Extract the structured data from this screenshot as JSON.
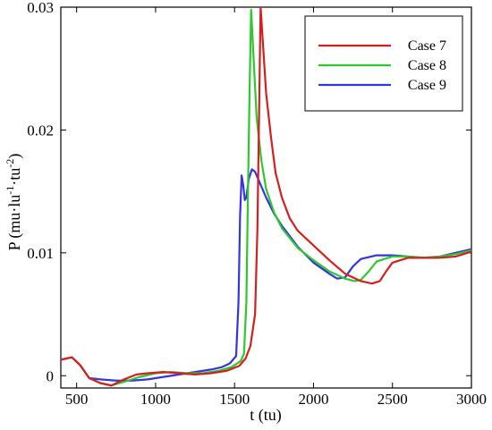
{
  "chart_data": {
    "type": "line",
    "xlabel": "t (tu)",
    "ylabel_parts": {
      "base": "P (mu·lu",
      "exp1": "-1",
      "mid": "·tu",
      "exp2": "-2",
      "close": ")"
    },
    "xlim": [
      400,
      3000
    ],
    "ylim": [
      -0.001,
      0.03
    ],
    "x_ticks": [
      {
        "value": 500,
        "label": "500"
      },
      {
        "value": 1000,
        "label": "1000"
      },
      {
        "value": 1500,
        "label": "1500"
      },
      {
        "value": 2000,
        "label": "2000"
      },
      {
        "value": 2500,
        "label": "2500"
      },
      {
        "value": 3000,
        "label": "3000"
      }
    ],
    "y_ticks": [
      {
        "value": 0,
        "label": "0"
      },
      {
        "value": 0.01,
        "label": "0.01"
      },
      {
        "value": 0.02,
        "label": "0.02"
      },
      {
        "value": 0.03,
        "label": "0.03"
      }
    ],
    "legend_position": "top-right",
    "grid": false,
    "series": [
      {
        "name": "Case 7",
        "color": "#d41f1f",
        "points": [
          [
            400,
            0.0013
          ],
          [
            470,
            0.0015
          ],
          [
            520,
            0.0009
          ],
          [
            580,
            -0.0002
          ],
          [
            650,
            -0.0006
          ],
          [
            720,
            -0.0008
          ],
          [
            800,
            -0.0003
          ],
          [
            880,
            0.0001
          ],
          [
            950,
            0.0002
          ],
          [
            1050,
            0.0003
          ],
          [
            1150,
            0.0002
          ],
          [
            1250,
            0.0001
          ],
          [
            1350,
            0.0002
          ],
          [
            1450,
            0.0004
          ],
          [
            1530,
            0.0008
          ],
          [
            1570,
            0.0014
          ],
          [
            1600,
            0.0024
          ],
          [
            1630,
            0.005
          ],
          [
            1645,
            0.012
          ],
          [
            1655,
            0.021
          ],
          [
            1665,
            0.03
          ],
          [
            1680,
            0.027
          ],
          [
            1700,
            0.023
          ],
          [
            1730,
            0.0195
          ],
          [
            1760,
            0.0165
          ],
          [
            1800,
            0.0145
          ],
          [
            1850,
            0.0128
          ],
          [
            1900,
            0.0118
          ],
          [
            2000,
            0.0106
          ],
          [
            2100,
            0.0094
          ],
          [
            2200,
            0.0083
          ],
          [
            2300,
            0.0077
          ],
          [
            2370,
            0.0075
          ],
          [
            2420,
            0.0077
          ],
          [
            2460,
            0.0085
          ],
          [
            2500,
            0.0092
          ],
          [
            2600,
            0.0096
          ],
          [
            2700,
            0.0096
          ],
          [
            2800,
            0.0096
          ],
          [
            2900,
            0.0097
          ],
          [
            3000,
            0.0101
          ]
        ]
      },
      {
        "name": "Case 8",
        "color": "#2ec82e",
        "points": [
          [
            400,
            0.0013
          ],
          [
            470,
            0.0015
          ],
          [
            520,
            0.0009
          ],
          [
            580,
            -0.0002
          ],
          [
            650,
            -0.0006
          ],
          [
            720,
            -0.0008
          ],
          [
            800,
            -0.0005
          ],
          [
            900,
            -0.0001
          ],
          [
            1000,
            0.0002
          ],
          [
            1100,
            0.0003
          ],
          [
            1200,
            0.0002
          ],
          [
            1300,
            0.0002
          ],
          [
            1400,
            0.0004
          ],
          [
            1480,
            0.0007
          ],
          [
            1540,
            0.0012
          ],
          [
            1560,
            0.0018
          ],
          [
            1575,
            0.006
          ],
          [
            1585,
            0.015
          ],
          [
            1595,
            0.023
          ],
          [
            1605,
            0.0298
          ],
          [
            1620,
            0.026
          ],
          [
            1640,
            0.021
          ],
          [
            1670,
            0.0175
          ],
          [
            1700,
            0.0152
          ],
          [
            1750,
            0.0133
          ],
          [
            1800,
            0.012
          ],
          [
            1900,
            0.0104
          ],
          [
            2000,
            0.0094
          ],
          [
            2100,
            0.0085
          ],
          [
            2200,
            0.0079
          ],
          [
            2260,
            0.0077
          ],
          [
            2300,
            0.0078
          ],
          [
            2350,
            0.0085
          ],
          [
            2400,
            0.0093
          ],
          [
            2500,
            0.0097
          ],
          [
            2600,
            0.0097
          ],
          [
            2700,
            0.0096
          ],
          [
            2800,
            0.0097
          ],
          [
            2900,
            0.0099
          ],
          [
            3000,
            0.0102
          ]
        ]
      },
      {
        "name": "Case 9",
        "color": "#3434e0",
        "points": [
          [
            400,
            0.0013
          ],
          [
            470,
            0.0015
          ],
          [
            520,
            0.0009
          ],
          [
            580,
            -0.0002
          ],
          [
            650,
            -0.0003
          ],
          [
            750,
            -0.0004
          ],
          [
            850,
            -0.0004
          ],
          [
            950,
            -0.0003
          ],
          [
            1050,
            -0.0001
          ],
          [
            1150,
            0.0001
          ],
          [
            1250,
            0.0003
          ],
          [
            1350,
            0.0005
          ],
          [
            1420,
            0.0007
          ],
          [
            1470,
            0.001
          ],
          [
            1510,
            0.0016
          ],
          [
            1525,
            0.006
          ],
          [
            1535,
            0.013
          ],
          [
            1545,
            0.0163
          ],
          [
            1555,
            0.0155
          ],
          [
            1565,
            0.0143
          ],
          [
            1575,
            0.0145
          ],
          [
            1590,
            0.016
          ],
          [
            1610,
            0.0168
          ],
          [
            1630,
            0.0166
          ],
          [
            1660,
            0.0157
          ],
          [
            1700,
            0.0145
          ],
          [
            1750,
            0.0132
          ],
          [
            1800,
            0.0122
          ],
          [
            1900,
            0.0105
          ],
          [
            2000,
            0.0092
          ],
          [
            2100,
            0.0083
          ],
          [
            2150,
            0.0079
          ],
          [
            2200,
            0.008
          ],
          [
            2250,
            0.0089
          ],
          [
            2300,
            0.0095
          ],
          [
            2400,
            0.0098
          ],
          [
            2500,
            0.0098
          ],
          [
            2600,
            0.0097
          ],
          [
            2700,
            0.0096
          ],
          [
            2800,
            0.0097
          ],
          [
            2900,
            0.01
          ],
          [
            3000,
            0.0103
          ]
        ]
      }
    ]
  }
}
